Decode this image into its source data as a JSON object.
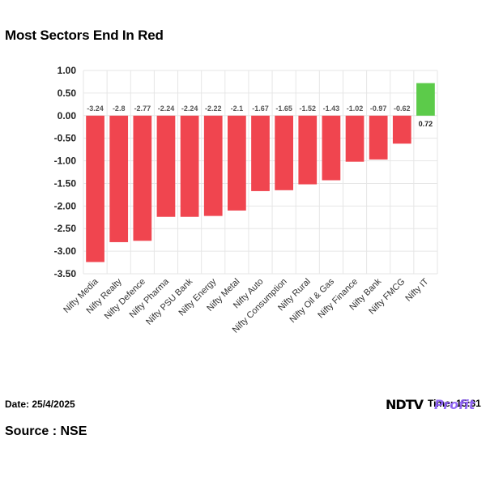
{
  "title": "Most Sectors End In Red",
  "date_label": "Date: 25/4/2025",
  "time_label": "Time: 15:31",
  "source_label": "Source : NSE",
  "brand": {
    "main": "NDTV",
    "sub": "Profit"
  },
  "colors": {
    "negative": "#f0454f",
    "positive": "#5ccb4a",
    "grid": "#e6e6e6",
    "label": "#555555"
  },
  "chart_data": {
    "type": "bar",
    "categories": [
      "Nifty Media",
      "Nifty Realty",
      "Nifty Defence",
      "Nifty Pharma",
      "Nifty PSU Bank",
      "Nifty Energy",
      "Nifty Metal",
      "Nifty Auto",
      "Nifty Consumption",
      "Nifty Rural",
      "Nifty Oil & Gas",
      "Nifty Finance",
      "Nifty Bank",
      "Nifty FMCG",
      "Nifty IT"
    ],
    "values": [
      -3.24,
      -2.8,
      -2.77,
      -2.24,
      -2.24,
      -2.22,
      -2.1,
      -1.67,
      -1.65,
      -1.52,
      -1.43,
      -1.02,
      -0.97,
      -0.62,
      0.72
    ],
    "value_labels": [
      "-3.24",
      "-2.8",
      "-2.77",
      "-2.24",
      "-2.24",
      "-2.22",
      "-2.1",
      "-1.67",
      "-1.65",
      "-1.52",
      "-1.43",
      "-1.02",
      "-0.97",
      "-0.62",
      "0.72"
    ],
    "yticks": [
      "1.00",
      "0.50",
      "0.00",
      "-0.50",
      "-1.00",
      "-1.50",
      "-2.00",
      "-2.50",
      "-3.00",
      "-3.50"
    ],
    "ylim": [
      -3.5,
      1.0
    ],
    "grid": true
  }
}
